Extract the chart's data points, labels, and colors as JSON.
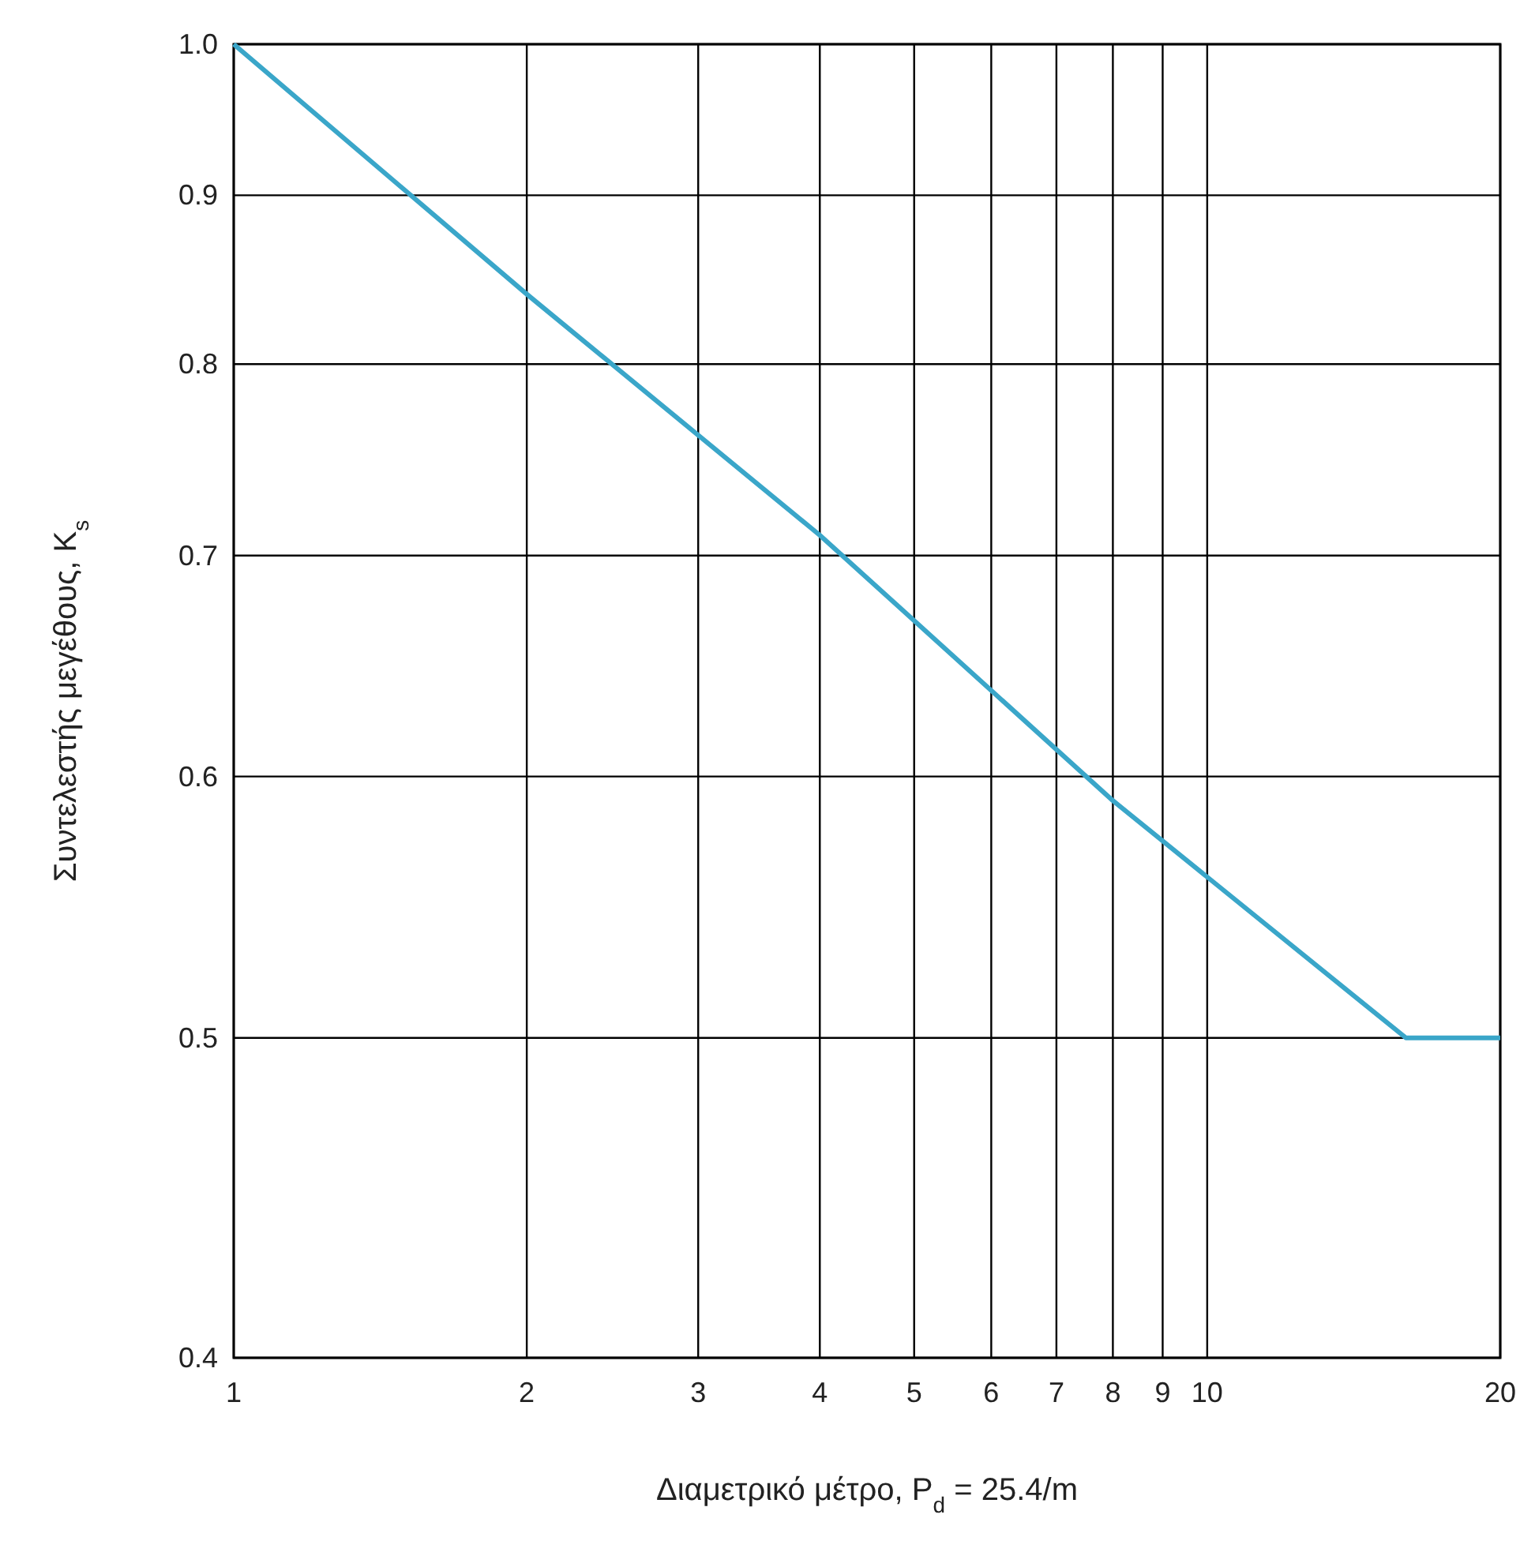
{
  "chart_data": {
    "type": "line",
    "xlabel": "Διαμετρικό μέτρο, P$_{d}$ = 25.4/m",
    "ylabel": "Συντελεστής μεγέθους, K$_{s}$",
    "log": "xy",
    "xlim": [
      1,
      20
    ],
    "ylim": [
      0.4,
      1.0
    ],
    "xticks": [
      1,
      2,
      3,
      4,
      5,
      6,
      7,
      8,
      9,
      10,
      20
    ],
    "yticks": [
      0.4,
      0.5,
      0.6,
      0.7,
      0.8,
      0.9,
      {
        "value": 1.0,
        "label": "1.0"
      }
    ],
    "grid": true,
    "series": [
      {
        "color": "#3aa6c9",
        "x": [
          1,
          2,
          4,
          8,
          16,
          20
        ],
        "values": [
          1.0,
          0.84,
          0.71,
          0.59,
          0.5,
          0.5
        ]
      }
    ]
  }
}
